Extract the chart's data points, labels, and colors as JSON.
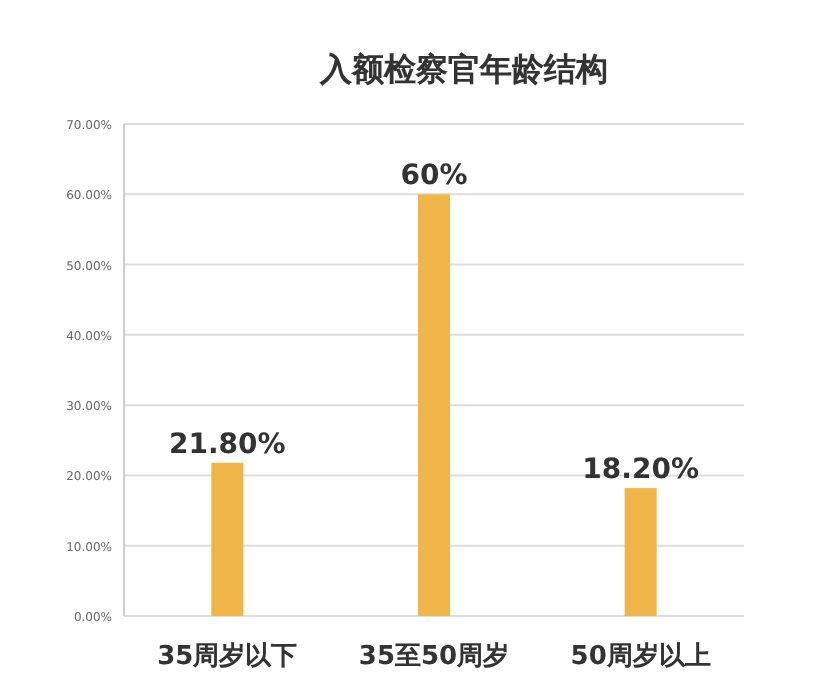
{
  "chart_data": {
    "type": "bar",
    "title": "入额检察官年龄结构",
    "categories": [
      "35周岁以下",
      "35至50周岁",
      "50周岁以上"
    ],
    "values": [
      21.8,
      60,
      18.2
    ],
    "value_labels": [
      "21.80%",
      "60%",
      "18.20%"
    ],
    "color": "#f0b548",
    "ylim": [
      0,
      70
    ],
    "yticks": [
      {
        "value": 0,
        "label": "0.00%"
      },
      {
        "value": 10,
        "label": "10.00%"
      },
      {
        "value": 20,
        "label": "20.00%"
      },
      {
        "value": 30,
        "label": "30.00%"
      },
      {
        "value": 40,
        "label": "40.00%"
      },
      {
        "value": 50,
        "label": "50.00%"
      },
      {
        "value": 60,
        "label": "60.00%"
      },
      {
        "value": 70,
        "label": "70.00%"
      }
    ],
    "grid": "y"
  }
}
